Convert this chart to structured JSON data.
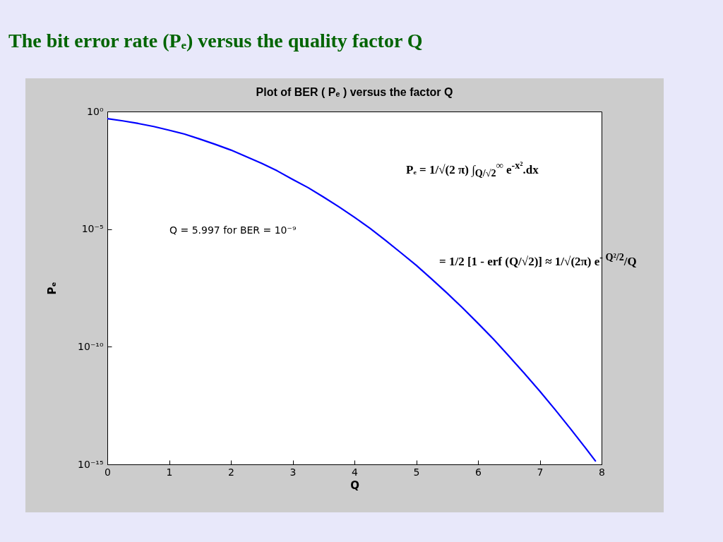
{
  "chart_data": {
    "type": "line",
    "title": "The bit error rate (Pₑ) versus the quality factor Q",
    "subtitle": "Plot of BER ( Pₑ ) versus the factor Q",
    "xlabel": "Q",
    "ylabel": "Pₑ",
    "annotations": [
      "Q = 5.997 for BER = 10⁻⁹",
      "Pₑ = 1/√(2 π) ∫$_{Q/√2}$$^{∞}$ e$^{-x²}$.dx",
      "= 1/2 [1 - erf (Q/√2)] ≈ 1/√(2π) e$^{- Q²/2}$/Q"
    ],
    "x": [
      0,
      0.25,
      0.5,
      0.75,
      1,
      1.25,
      1.5,
      1.75,
      2,
      2.25,
      2.5,
      2.75,
      3,
      3.25,
      3.5,
      3.75,
      4,
      4.25,
      4.5,
      4.75,
      5,
      5.25,
      5.5,
      5.75,
      6,
      6.25,
      6.5,
      6.75,
      7,
      7.25,
      7.5,
      7.75,
      7.9
    ],
    "series": [
      {
        "color": "#0000ff",
        "values": [
          0.5,
          0.4,
          0.31,
          0.23,
          0.16,
          0.11,
          0.067,
          0.04,
          0.023,
          0.012,
          0.0062,
          0.003,
          0.0013,
          0.00058,
          0.00023,
          8.8e-05,
          3.2e-05,
          1.1e-05,
          3.4e-06,
          1e-06,
          2.9e-07,
          7.6e-08,
          1.9e-08,
          4.5e-09,
          9.9e-10,
          2.1e-10,
          4e-11,
          7.4e-12,
          1.3e-12,
          2.1e-13,
          3.2e-14,
          4.6e-15,
          1.4e-15
        ]
      }
    ],
    "xlim": [
      0,
      8
    ],
    "xticks": [
      0,
      1,
      2,
      3,
      4,
      5,
      6,
      7,
      8
    ],
    "ylim": [
      1e-15,
      1
    ],
    "yticks": [
      {
        "value": 1,
        "label": "10⁰"
      },
      {
        "value": 1e-05,
        "label": "10⁻⁵"
      },
      {
        "value": 1e-10,
        "label": "10⁻¹⁰"
      },
      {
        "value": 1e-15,
        "label": "10⁻¹⁵"
      }
    ],
    "log": true
  }
}
